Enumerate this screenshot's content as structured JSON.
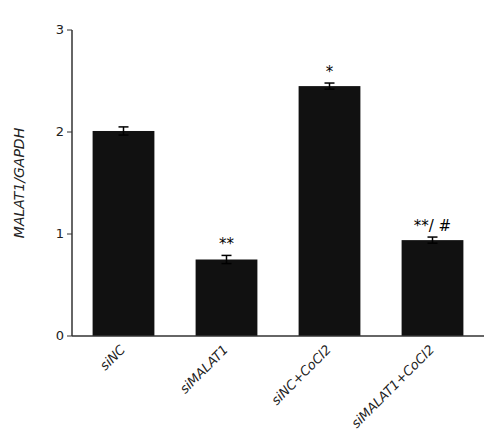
{
  "chart_data": {
    "type": "bar",
    "categories": [
      "siNC",
      "siMALAT1",
      "siNC+CoCl2",
      "siMALAT1+CoCl2"
    ],
    "values": [
      2.01,
      0.75,
      2.45,
      0.94
    ],
    "errors": [
      0.04,
      0.04,
      0.03,
      0.03
    ],
    "color": "#111111",
    "ylabel": "MALAT1/GAPDH",
    "ylim": [
      0,
      3.0
    ],
    "yticks": [
      0,
      1,
      2,
      3
    ],
    "annotations": [
      null,
      "**",
      "*",
      "**/ #"
    ],
    "grid": false
  }
}
